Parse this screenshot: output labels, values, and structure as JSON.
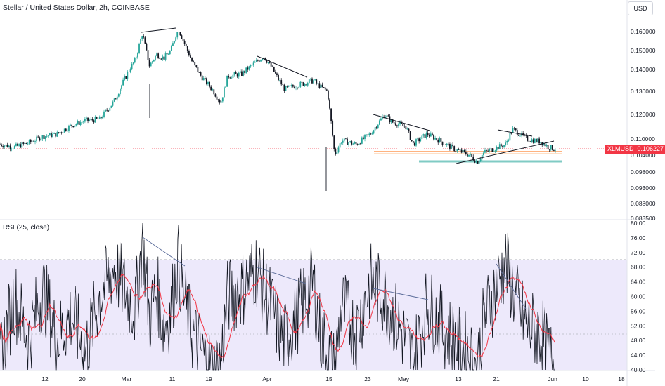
{
  "title": "Stellar / United States Dollar, 2h, COINBASE",
  "currency_button": "USD",
  "price_label": {
    "symbol": "XLMUSD",
    "value": "0.106227"
  },
  "rsi_label": "RSI (25, close)",
  "colors": {
    "up": "#26a69a",
    "down": "#131722",
    "rsi": "#131722",
    "rsi_ma": "#f23645",
    "band": "#ede9fb",
    "trendline": "#131722",
    "support": "#ffb380",
    "support2": "#80cbc4",
    "price_line": "#f23645"
  },
  "chart_data": [
    {
      "type": "candlestick",
      "title": "Stellar / United States Dollar, 2h, COINBASE",
      "y_ticks": [
        "0.160000",
        "0.150000",
        "0.140000",
        "0.130000",
        "0.120000",
        "0.110000",
        "0.104000",
        "0.098000",
        "0.093000",
        "0.088000",
        "0.083500"
      ],
      "x_ticks": [
        "12",
        "20",
        "Mar",
        "11",
        "19",
        "Apr",
        "15",
        "23",
        "May",
        "13",
        "21",
        "Jun",
        "10",
        "18"
      ],
      "last_price": 0.106227,
      "price_path": [
        [
          0,
          0.108
        ],
        [
          2,
          0.107
        ],
        [
          4,
          0.1085
        ],
        [
          6,
          0.111
        ],
        [
          8,
          0.112
        ],
        [
          10,
          0.1155
        ],
        [
          12,
          0.1175
        ],
        [
          14,
          0.118
        ],
        [
          16,
          0.1255
        ],
        [
          18,
          0.139
        ],
        [
          19,
          0.145
        ],
        [
          20,
          0.159
        ],
        [
          21,
          0.142
        ],
        [
          22,
          0.148
        ],
        [
          23,
          0.146
        ],
        [
          24,
          0.15
        ],
        [
          25,
          0.162
        ],
        [
          26,
          0.153
        ],
        [
          27,
          0.144
        ],
        [
          28,
          0.138
        ],
        [
          29,
          0.134
        ],
        [
          30,
          0.13
        ],
        [
          31,
          0.125
        ],
        [
          32,
          0.137
        ],
        [
          34,
          0.138
        ],
        [
          36,
          0.144
        ],
        [
          37,
          0.147
        ],
        [
          38,
          0.142
        ],
        [
          39,
          0.136
        ],
        [
          40,
          0.131
        ],
        [
          42,
          0.133
        ],
        [
          44,
          0.135
        ],
        [
          45,
          0.132
        ],
        [
          46,
          0.13
        ],
        [
          47,
          0.104
        ],
        [
          48,
          0.1095
        ],
        [
          50,
          0.108
        ],
        [
          52,
          0.112
        ],
        [
          54,
          0.12
        ],
        [
          55,
          0.117
        ],
        [
          57,
          0.115
        ],
        [
          58,
          0.108
        ],
        [
          60,
          0.112
        ],
        [
          62,
          0.109
        ],
        [
          64,
          0.106
        ],
        [
          66,
          0.104
        ],
        [
          67,
          0.1015
        ],
        [
          68,
          0.105
        ],
        [
          70,
          0.107
        ],
        [
          71,
          0.108
        ],
        [
          72,
          0.114
        ],
        [
          73,
          0.112
        ],
        [
          74,
          0.11
        ],
        [
          76,
          0.109
        ],
        [
          77,
          0.107
        ],
        [
          78,
          0.1062
        ]
      ]
    },
    {
      "type": "line",
      "title": "RSI (25, close)",
      "y_ticks": [
        "80.00",
        "76.00",
        "72.00",
        "68.00",
        "64.00",
        "60.00",
        "56.00",
        "52.00",
        "48.00",
        "44.00",
        "40.00"
      ],
      "ylim": [
        40,
        80
      ],
      "band": [
        50,
        70
      ],
      "rsi_path": [
        [
          0,
          42
        ],
        [
          2,
          60
        ],
        [
          4,
          48
        ],
        [
          6,
          62
        ],
        [
          8,
          48
        ],
        [
          10,
          55
        ],
        [
          12,
          45
        ],
        [
          14,
          60
        ],
        [
          16,
          68
        ],
        [
          18,
          60
        ],
        [
          19,
          56
        ],
        [
          20,
          76
        ],
        [
          21,
          54
        ],
        [
          22,
          62
        ],
        [
          23,
          52
        ],
        [
          24,
          56
        ],
        [
          25,
          70
        ],
        [
          26,
          58
        ],
        [
          27,
          50
        ],
        [
          28,
          46
        ],
        [
          29,
          42
        ],
        [
          30,
          40
        ],
        [
          31,
          42
        ],
        [
          32,
          60
        ],
        [
          34,
          62
        ],
        [
          36,
          68
        ],
        [
          37,
          62
        ],
        [
          38,
          58
        ],
        [
          39,
          52
        ],
        [
          40,
          48
        ],
        [
          42,
          56
        ],
        [
          44,
          64
        ],
        [
          45,
          50
        ],
        [
          46,
          44
        ],
        [
          47,
          40
        ],
        [
          48,
          58
        ],
        [
          50,
          50
        ],
        [
          52,
          64
        ],
        [
          54,
          60
        ],
        [
          55,
          56
        ],
        [
          57,
          48
        ],
        [
          58,
          42
        ],
        [
          60,
          58
        ],
        [
          62,
          52
        ],
        [
          64,
          48
        ],
        [
          66,
          44
        ],
        [
          67,
          40
        ],
        [
          68,
          54
        ],
        [
          70,
          64
        ],
        [
          71,
          69
        ],
        [
          72,
          62
        ],
        [
          73,
          56
        ],
        [
          74,
          52
        ],
        [
          76,
          50
        ],
        [
          77,
          44
        ],
        [
          78,
          42
        ]
      ]
    }
  ]
}
